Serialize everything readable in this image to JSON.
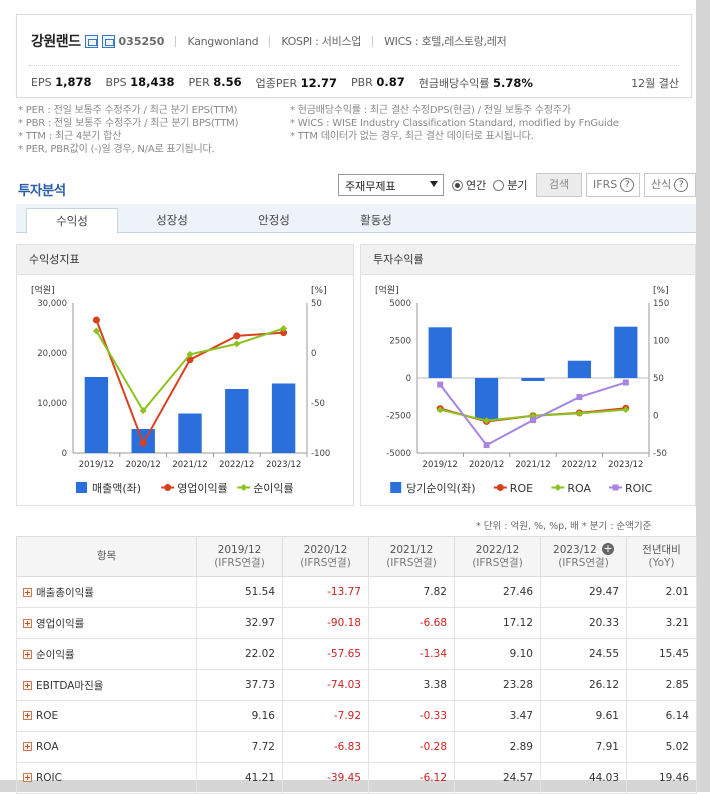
{
  "company": {
    "name": "강원랜드",
    "ticker": "035250",
    "english_name": "Kangwonland",
    "kospi": "KOSPI : 서비스업",
    "wics": "WICS : 호텔,레스토랑,레저"
  },
  "metrics": [
    {
      "label": "EPS",
      "value": "1,878"
    },
    {
      "label": "BPS",
      "value": "18,438"
    },
    {
      "label": "PER",
      "value": "8.56"
    },
    {
      "label": "업종PER",
      "value": "12.77"
    },
    {
      "label": "PBR",
      "value": "0.87"
    },
    {
      "label": "현금배당수익률",
      "value": "5.78%"
    }
  ],
  "fiscal_label": "12월 결산",
  "notes_left": [
    "* PER : 전일 보통주 수정주가 / 최근 분기 EPS(TTM)",
    "* PBR : 전일 보통주 수정주가 / 최근 분기 BPS(TTM)",
    "* TTM : 최근 4분기 합산",
    "* PER, PBR값이 (-)일 경우, N/A로 표기됩니다."
  ],
  "notes_right": [
    "* 현금배당수익률 : 최근 결산 수정DPS(현금) / 전일 보통주 수정주가",
    "* WICS : WISE Industry Classification Standard, modified by FnGuide",
    "* TTM 데이터가 없는 경우, 최근 결산 데이터로 표시됩니다."
  ],
  "section_title": "투자분석",
  "controls": {
    "report_select": "주재무제표",
    "radio_annual": "연간",
    "radio_quarter": "분기",
    "search": "검색",
    "ifrs": "IFRS",
    "formula": "산식"
  },
  "tabs": [
    "수익성",
    "성장성",
    "안정성",
    "활동성"
  ],
  "left_chart": {
    "title": "수익성지표",
    "left_unit": "[억원]",
    "right_unit": "[%]"
  },
  "right_chart": {
    "title": "투자수익률",
    "left_unit": "[억원]",
    "right_unit": "[%]"
  },
  "chart_data": [
    {
      "type": "bar",
      "title": "수익성지표",
      "categories": [
        "2019/12",
        "2020/12",
        "2021/12",
        "2022/12",
        "2023/12"
      ],
      "ylim_left": [
        0,
        30000
      ],
      "yticks_left": [
        "30,000",
        "20,000",
        "10,000",
        "0"
      ],
      "ylim_right": [
        -100,
        50
      ],
      "yticks_right": [
        "50",
        "0",
        "-50",
        "-100"
      ],
      "series": [
        {
          "name": "매출액(좌)",
          "kind": "bar",
          "axis": "left",
          "color": "#2a6fdb",
          "values": [
            15200,
            4800,
            7900,
            12800,
            13900
          ]
        },
        {
          "name": "영업이익률",
          "kind": "line",
          "axis": "right",
          "color": "#d9401e",
          "values": [
            32.97,
            -90.18,
            -6.68,
            17.12,
            20.33
          ]
        },
        {
          "name": "순이익률",
          "kind": "line",
          "axis": "right",
          "color": "#8cc21f",
          "values": [
            22.02,
            -57.65,
            -1.34,
            9.1,
            24.55
          ]
        }
      ]
    },
    {
      "type": "bar",
      "title": "투자수익률",
      "categories": [
        "2019/12",
        "2020/12",
        "2021/12",
        "2022/12",
        "2023/12"
      ],
      "ylim_left": [
        -5000,
        5000
      ],
      "yticks_left": [
        "5000",
        "2500",
        "0",
        "-2500",
        "-5000"
      ],
      "ylim_right": [
        -50,
        150
      ],
      "yticks_right": [
        "150",
        "100",
        "50",
        "0",
        "-50"
      ],
      "series": [
        {
          "name": "당기순이익(좌)",
          "kind": "bar",
          "axis": "left",
          "color": "#2a6fdb",
          "values": [
            3380,
            -2760,
            -200,
            1150,
            3420
          ]
        },
        {
          "name": "ROE",
          "kind": "line",
          "axis": "right",
          "color": "#d9401e",
          "values": [
            9.16,
            -7.92,
            -0.33,
            3.47,
            9.61
          ]
        },
        {
          "name": "ROA",
          "kind": "line",
          "axis": "right",
          "color": "#8cc21f",
          "values": [
            7.72,
            -6.83,
            -0.28,
            2.89,
            7.91
          ]
        },
        {
          "name": "ROIC",
          "kind": "line",
          "axis": "right",
          "color": "#a785e0",
          "values": [
            41.21,
            -39.45,
            -6.12,
            24.57,
            44.03
          ]
        }
      ]
    }
  ],
  "unit_note": "* 단위 : 억원, %, %p, 배    * 분기 : 순액기준",
  "table": {
    "header_item": "항목",
    "columns": [
      {
        "year": "2019/12",
        "basis": "(IFRS연결)"
      },
      {
        "year": "2020/12",
        "basis": "(IFRS연결)"
      },
      {
        "year": "2021/12",
        "basis": "(IFRS연결)"
      },
      {
        "year": "2022/12",
        "basis": "(IFRS연결)"
      },
      {
        "year": "2023/12",
        "basis": "(IFRS연결)"
      }
    ],
    "yoy_header": "전년대비",
    "yoy_sub": "(YoY)",
    "rows": [
      {
        "label": "매출총이익률",
        "values": [
          "51.54",
          "-13.77",
          "7.82",
          "27.46",
          "29.47"
        ],
        "yoy": "2.01"
      },
      {
        "label": "영업이익률",
        "values": [
          "32.97",
          "-90.18",
          "-6.68",
          "17.12",
          "20.33"
        ],
        "yoy": "3.21"
      },
      {
        "label": "순이익률",
        "values": [
          "22.02",
          "-57.65",
          "-1.34",
          "9.10",
          "24.55"
        ],
        "yoy": "15.45"
      },
      {
        "label": "EBITDA마진율",
        "values": [
          "37.73",
          "-74.03",
          "3.38",
          "23.28",
          "26.12"
        ],
        "yoy": "2.85"
      },
      {
        "label": "ROE",
        "values": [
          "9.16",
          "-7.92",
          "-0.33",
          "3.47",
          "9.61"
        ],
        "yoy": "6.14"
      },
      {
        "label": "ROA",
        "values": [
          "7.72",
          "-6.83",
          "-0.28",
          "2.89",
          "7.91"
        ],
        "yoy": "5.02"
      },
      {
        "label": "ROIC",
        "values": [
          "41.21",
          "-39.45",
          "-6.12",
          "24.57",
          "44.03"
        ],
        "yoy": "19.46"
      }
    ]
  }
}
